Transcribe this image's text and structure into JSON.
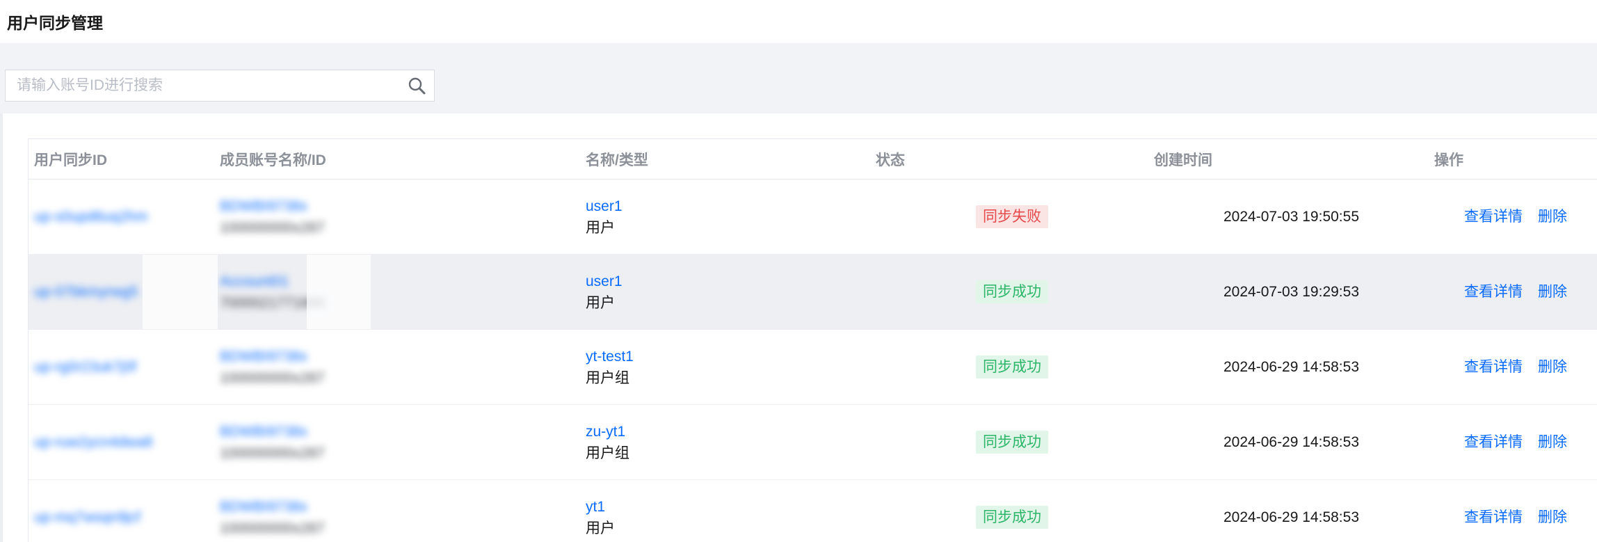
{
  "page": {
    "title": "用户同步管理"
  },
  "toolbar": {
    "search_placeholder": "请输入账号ID进行搜索",
    "search_icon": "magnifier",
    "refresh_icon": "circular-arrows"
  },
  "colors": {
    "link_blue": "#0a6cff",
    "status_fail_text": "#e64949",
    "status_fail_bg": "#fbe4e4",
    "status_success_text": "#2bb568",
    "status_success_bg": "#e1f6e9",
    "toolbar_bg": "#f2f3f6",
    "header_text": "#8c9099",
    "highlighted_row_bg": "#edeff3"
  },
  "table": {
    "columns": [
      "用户同步ID",
      "成员账号名称/ID",
      "名称/类型",
      "状态",
      "创建时间",
      "操作"
    ],
    "view_label": "查看详情",
    "delete_label": "删除",
    "rows": [
      {
        "sync_id": "up-s0upd6uq2hm",
        "sync_id_blurred": true,
        "account_name": "BDWBI9738x",
        "account_id": "100000000x287",
        "account_blurred": true,
        "name": "user1",
        "type": "用户",
        "status": "fail",
        "status_label": "同步失败",
        "created": "2024-07-03 19:50:55",
        "highlighted": false
      },
      {
        "sync_id": "up-07bkmyrwg5",
        "sync_id_blurred": true,
        "account_name": "Account01",
        "account_id": "7000021771886",
        "account_blurred": true,
        "name": "user1",
        "type": "用户",
        "status": "success",
        "status_label": "同步成功",
        "created": "2024-07-03 19:29:53",
        "highlighted": true
      },
      {
        "sync_id": "up-rg0r23uk7j0f",
        "sync_id_blurred": true,
        "account_name": "BDWBI9738x",
        "account_id": "100000000x287",
        "account_blurred": true,
        "name": "yt-test1",
        "type": "用户组",
        "status": "success",
        "status_label": "同步成功",
        "created": "2024-06-29 14:58:53",
        "highlighted": false
      },
      {
        "sync_id": "up-ruw2ycn4dwa8",
        "sync_id_blurred": true,
        "account_name": "BDWBI9738x",
        "account_id": "100000000x287",
        "account_blurred": true,
        "name": "zu-yt1",
        "type": "用户组",
        "status": "success",
        "status_label": "同步成功",
        "created": "2024-06-29 14:58:53",
        "highlighted": false
      },
      {
        "sync_id": "up-mq7wsqn9jcf",
        "sync_id_blurred": true,
        "account_name": "BDWBI9738x",
        "account_id": "100000000x287",
        "account_blurred": true,
        "name": "yt1",
        "type": "用户",
        "status": "success",
        "status_label": "同步成功",
        "created": "2024-06-29 14:58:53",
        "highlighted": false
      }
    ]
  }
}
